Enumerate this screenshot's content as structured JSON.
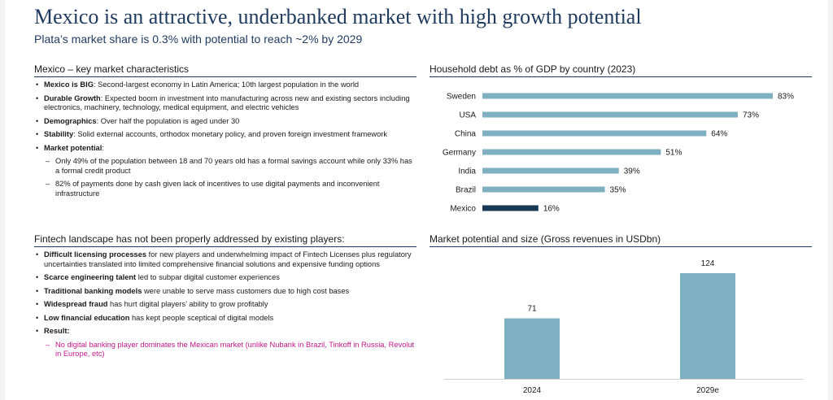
{
  "header": {
    "title": "Mexico is an attractive, underbanked market with high growth potential",
    "subtitle": "Plata’s market share is 0.3% with potential to reach ~2% by 2029"
  },
  "left": {
    "section1": {
      "heading": "Mexico – key market characteristics",
      "items": [
        {
          "bold": "Mexico is BIG",
          "text": ": Second-largest economy in Latin America; 10th largest population in the world"
        },
        {
          "bold": "Durable Growth",
          "text": ": Expected boom in investment into manufacturing across new and existing sectors including electronics, machinery, technology, medical equipment, and electric vehicles"
        },
        {
          "bold": "Demographics",
          "text": ": Over half the population is aged under 30"
        },
        {
          "bold": "Stability",
          "text": ": Solid external accounts, orthodox monetary policy, and proven foreign investment framework"
        },
        {
          "bold": "Market potential",
          "text": ":"
        }
      ],
      "subitems": [
        "Only 49% of the population between 18 and 70 years old has a formal savings account while only 33% has a formal credit product",
        "82% of payments done by cash given lack of incentives to use digital payments and inconvenient infrastructure"
      ]
    },
    "section2": {
      "heading": "Fintech landscape has not been properly addressed by existing players:",
      "items": [
        {
          "bold": "Difficult licensing processes",
          "text": " for new players and underwhelming impact of Fintech Licenses plus regulatory uncertainties translated into limited comprehensive financial solutions and expensive funding options"
        },
        {
          "bold": "Scarce engineering talent",
          "text": " led to subpar digital customer experiences"
        },
        {
          "bold": "Traditional banking models",
          "text": " were unable to serve mass customers due to high cost bases"
        },
        {
          "bold": "Widespread fraud",
          "text": " has hurt digital players’ ability to grow profitably"
        },
        {
          "bold": "Low financial education",
          "text": " has kept people sceptical of digital models"
        },
        {
          "bold": "Result:",
          "text": ""
        }
      ],
      "subitems": [
        "No digital banking player dominates the Mexican market (unlike Nubank in Brazil, Tinkoff in Russia, Revolut in Europe, etc)"
      ]
    }
  },
  "chart_data": [
    {
      "type": "bar",
      "orientation": "horizontal",
      "title": "Household debt as % of GDP by country (2023)",
      "categories": [
        "Sweden",
        "USA",
        "China",
        "Germany",
        "India",
        "Brazil",
        "Mexico"
      ],
      "values": [
        83,
        73,
        64,
        51,
        39,
        35,
        16
      ],
      "labels": [
        "83%",
        "73%",
        "64%",
        "51%",
        "39%",
        "35%",
        "16%"
      ],
      "xlim": [
        0,
        83
      ],
      "colors": {
        "default": "#7fb0c2",
        "highlight": "#163a55"
      },
      "highlight": "Mexico"
    },
    {
      "type": "bar",
      "title": "Market potential and size (Gross revenues in USDbn)",
      "categories": [
        "2024",
        "2029e"
      ],
      "values": [
        71,
        124
      ],
      "labels": [
        "71",
        "124"
      ],
      "ylim": [
        0,
        124
      ],
      "colors": {
        "default": "#7fb0c2"
      }
    }
  ]
}
